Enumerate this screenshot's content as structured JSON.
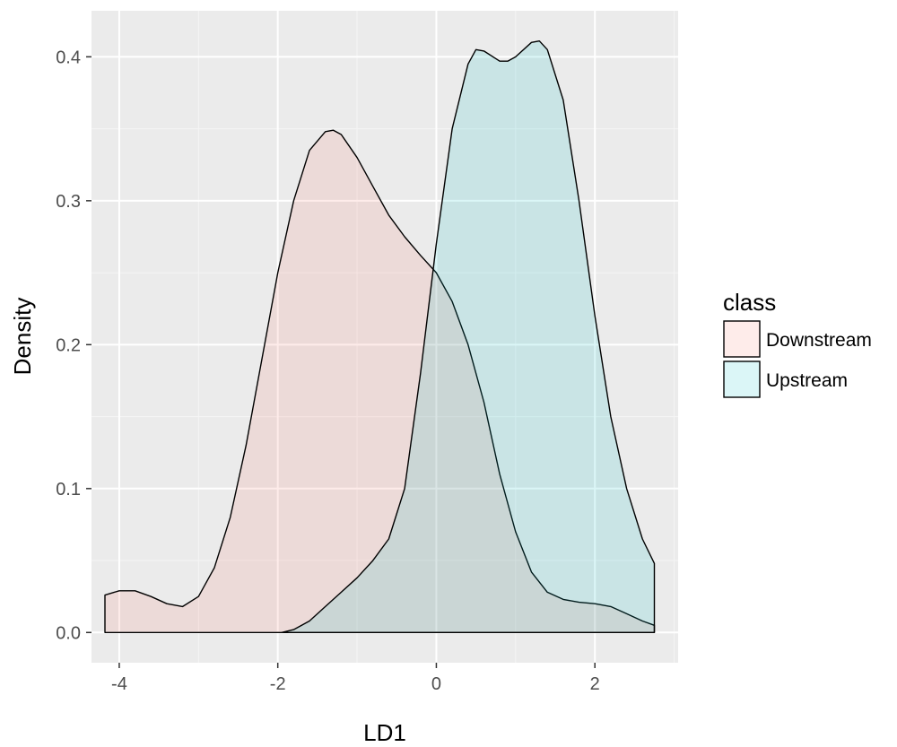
{
  "chart_data": {
    "type": "area",
    "xlabel": "LD1",
    "ylabel": "Density",
    "xlim": [
      -4.35,
      3.05
    ],
    "ylim": [
      -0.021,
      0.432
    ],
    "x_ticks": [
      -4,
      -2,
      0,
      2
    ],
    "x_tick_labels": [
      "-4",
      "-2",
      "0",
      "2"
    ],
    "y_ticks": [
      0.0,
      0.1,
      0.2,
      0.3,
      0.4
    ],
    "y_tick_labels": [
      "0.0",
      "0.1",
      "0.2",
      "0.3",
      "0.4"
    ],
    "grid": true,
    "legend": {
      "title": "class",
      "position": "right"
    },
    "series": [
      {
        "name": "Downstream",
        "fill": "#f8766d",
        "x": [
          -4.18,
          -4.0,
          -3.8,
          -3.6,
          -3.4,
          -3.2,
          -3.0,
          -2.8,
          -2.6,
          -2.4,
          -2.2,
          -2.0,
          -1.8,
          -1.6,
          -1.4,
          -1.3,
          -1.2,
          -1.0,
          -0.8,
          -0.6,
          -0.4,
          -0.2,
          0.0,
          0.2,
          0.4,
          0.6,
          0.8,
          1.0,
          1.2,
          1.4,
          1.6,
          1.8,
          2.0,
          2.2,
          2.4,
          2.6,
          2.75
        ],
        "y": [
          0.026,
          0.029,
          0.029,
          0.025,
          0.02,
          0.018,
          0.025,
          0.045,
          0.08,
          0.13,
          0.19,
          0.25,
          0.3,
          0.335,
          0.348,
          0.349,
          0.346,
          0.33,
          0.31,
          0.29,
          0.275,
          0.262,
          0.25,
          0.23,
          0.2,
          0.16,
          0.11,
          0.07,
          0.042,
          0.028,
          0.023,
          0.021,
          0.02,
          0.018,
          0.013,
          0.008,
          0.005
        ]
      },
      {
        "name": "Upstream",
        "fill": "#00bfc4",
        "x": [
          -1.95,
          -1.8,
          -1.6,
          -1.4,
          -1.2,
          -1.0,
          -0.8,
          -0.6,
          -0.4,
          -0.2,
          0.0,
          0.2,
          0.4,
          0.5,
          0.6,
          0.8,
          0.9,
          1.0,
          1.2,
          1.3,
          1.4,
          1.6,
          1.8,
          2.0,
          2.2,
          2.4,
          2.6,
          2.75
        ],
        "y": [
          0.0,
          0.002,
          0.008,
          0.018,
          0.028,
          0.038,
          0.05,
          0.065,
          0.1,
          0.18,
          0.27,
          0.35,
          0.395,
          0.405,
          0.404,
          0.397,
          0.397,
          0.4,
          0.41,
          0.411,
          0.405,
          0.37,
          0.3,
          0.22,
          0.15,
          0.1,
          0.065,
          0.048
        ]
      }
    ]
  }
}
